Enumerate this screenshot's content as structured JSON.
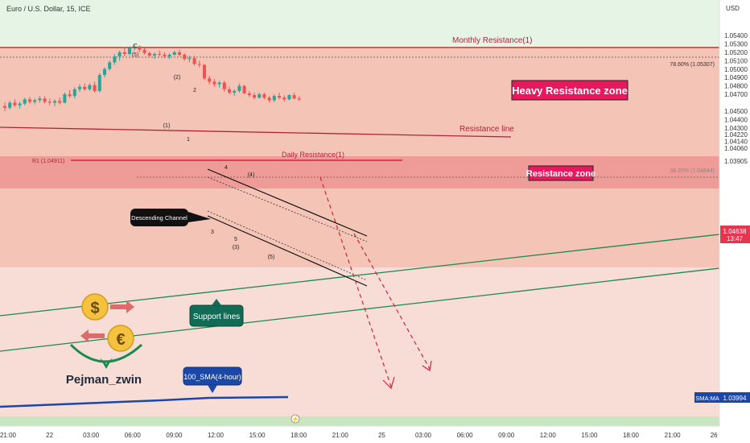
{
  "header": {
    "title": "Euro / U.S. Dollar, 15, ICE",
    "currency": "USD"
  },
  "price_badge": {
    "value": "1.04638",
    "countdown": "13:47"
  },
  "sma_badge": {
    "label": "SMA:MA",
    "value": "1.03994"
  },
  "watermark": "Pejman_zwin",
  "zones": {
    "monthly_resistance": {
      "label": "Monthly Resistance(1)",
      "price": 1.0536
    },
    "heavy_resistance": {
      "label": "Heavy Resistance zone",
      "top": 1.0536,
      "bottom": 1.045
    },
    "resistance_zone": {
      "label": "Resistance zone",
      "top": 1.0492,
      "bottom": 1.0481
    },
    "daily_resistance": {
      "label": "Daily Resistance(1)",
      "r1_label": "R1 (1.04911)",
      "price": 1.04911
    },
    "fib_786": {
      "label": "78.60% (1.05307)",
      "price": 1.05307
    },
    "fib_382": {
      "label": "38.20% (1.04844)",
      "price": 1.04844
    },
    "support_band": {
      "top": 1.045,
      "bottom": 1.0392
    },
    "resistance_line_label": "Resistance line",
    "support_lines_label": "Support lines",
    "descending_channel_label": "Descending Channel",
    "sma_label": "100_SMA(4-hour)"
  },
  "wave_labels": [
    "C",
    "(5)",
    "(2)",
    "2",
    "(1)",
    "1",
    "4",
    "(4)",
    "3",
    "5",
    "(3)",
    "(5)"
  ],
  "chart_data": {
    "type": "candlestick",
    "symbol": "Euro / U.S. Dollar",
    "interval": "15",
    "ylim": [
      1.03895,
      1.0549
    ],
    "y_ticks": [
      "1.05400",
      "1.05300",
      "1.05200",
      "1.05100",
      "1.05000",
      "1.04900",
      "1.04800",
      "1.04700",
      "1.04500",
      "1.04400",
      "1.04300",
      "1.04220",
      "1.04140",
      "1.04060",
      "1.03905"
    ],
    "x_ticks": [
      "21:00",
      "22",
      "03:00",
      "06:00",
      "09:00",
      "12:00",
      "15:00",
      "18:00",
      "21:00",
      "25",
      "03:00",
      "06:00",
      "09:00",
      "12:00",
      "15:00",
      "18:00",
      "21:00",
      "26"
    ],
    "candles_ohlc": [
      [
        1.0456,
        1.046,
        1.045,
        1.0454
      ],
      [
        1.0454,
        1.0462,
        1.0452,
        1.046
      ],
      [
        1.046,
        1.0464,
        1.0455,
        1.0457
      ],
      [
        1.0457,
        1.0461,
        1.0453,
        1.0459
      ],
      [
        1.0459,
        1.0466,
        1.0457,
        1.0464
      ],
      [
        1.0464,
        1.0467,
        1.0459,
        1.0461
      ],
      [
        1.0461,
        1.0465,
        1.0458,
        1.0463
      ],
      [
        1.0463,
        1.0468,
        1.046,
        1.0465
      ],
      [
        1.0465,
        1.0468,
        1.0459,
        1.0461
      ],
      [
        1.0461,
        1.0465,
        1.0457,
        1.046
      ],
      [
        1.046,
        1.0464,
        1.0456,
        1.0462
      ],
      [
        1.0462,
        1.0466,
        1.0458,
        1.046
      ],
      [
        1.046,
        1.0472,
        1.0459,
        1.047
      ],
      [
        1.047,
        1.0475,
        1.0466,
        1.0468
      ],
      [
        1.0468,
        1.0478,
        1.0465,
        1.0476
      ],
      [
        1.0476,
        1.0482,
        1.0473,
        1.0479
      ],
      [
        1.0479,
        1.0483,
        1.0474,
        1.0476
      ],
      [
        1.0476,
        1.0483,
        1.0474,
        1.0481
      ],
      [
        1.0481,
        1.0485,
        1.0472,
        1.0474
      ],
      [
        1.0474,
        1.0495,
        1.0472,
        1.0493
      ],
      [
        1.0493,
        1.0502,
        1.049,
        1.05
      ],
      [
        1.05,
        1.051,
        1.0498,
        1.0508
      ],
      [
        1.0508,
        1.0518,
        1.0505,
        1.0515
      ],
      [
        1.0515,
        1.0522,
        1.051,
        1.052
      ],
      [
        1.052,
        1.0526,
        1.0515,
        1.0518
      ],
      [
        1.0518,
        1.0527,
        1.0516,
        1.0525
      ],
      [
        1.0525,
        1.0529,
        1.0522,
        1.0527
      ],
      [
        1.0527,
        1.0528,
        1.052,
        1.0523
      ],
      [
        1.0523,
        1.0525,
        1.0517,
        1.0519
      ],
      [
        1.0519,
        1.0521,
        1.0514,
        1.0516
      ],
      [
        1.0516,
        1.052,
        1.0512,
        1.0518
      ],
      [
        1.0518,
        1.0522,
        1.0515,
        1.0517
      ],
      [
        1.0517,
        1.052,
        1.0513,
        1.0515
      ],
      [
        1.0515,
        1.0519,
        1.0512,
        1.0517
      ],
      [
        1.0517,
        1.0522,
        1.0516,
        1.052
      ],
      [
        1.052,
        1.0523,
        1.0515,
        1.0517
      ],
      [
        1.0517,
        1.0519,
        1.051,
        1.0512
      ],
      [
        1.0512,
        1.0516,
        1.0508,
        1.0513
      ],
      [
        1.0513,
        1.0516,
        1.0504,
        1.0506
      ],
      [
        1.0506,
        1.051,
        1.0502,
        1.0505
      ],
      [
        1.0505,
        1.0506,
        1.0487,
        1.0489
      ],
      [
        1.0489,
        1.0492,
        1.0482,
        1.0485
      ],
      [
        1.0485,
        1.0488,
        1.0479,
        1.0482
      ],
      [
        1.0482,
        1.0486,
        1.0478,
        1.0484
      ],
      [
        1.0484,
        1.0486,
        1.0473,
        1.0476
      ],
      [
        1.0476,
        1.0479,
        1.047,
        1.0472
      ],
      [
        1.0472,
        1.0476,
        1.0468,
        1.0474
      ],
      [
        1.0474,
        1.0483,
        1.0472,
        1.048
      ],
      [
        1.048,
        1.0481,
        1.047,
        1.0471
      ],
      [
        1.0471,
        1.0474,
        1.0467,
        1.0469
      ],
      [
        1.0469,
        1.0472,
        1.0464,
        1.0466
      ],
      [
        1.0466,
        1.0472,
        1.0465,
        1.047
      ],
      [
        1.047,
        1.0472,
        1.0464,
        1.0466
      ],
      [
        1.0466,
        1.0468,
        1.046,
        1.0463
      ],
      [
        1.0463,
        1.047,
        1.0461,
        1.0468
      ],
      [
        1.0468,
        1.0472,
        1.0464,
        1.0466
      ],
      [
        1.0466,
        1.0469,
        1.0461,
        1.0464
      ],
      [
        1.0464,
        1.047,
        1.0463,
        1.0469
      ],
      [
        1.0469,
        1.0472,
        1.0464,
        1.0465
      ],
      [
        1.0465,
        1.0468,
        1.0462,
        1.04638
      ]
    ]
  }
}
